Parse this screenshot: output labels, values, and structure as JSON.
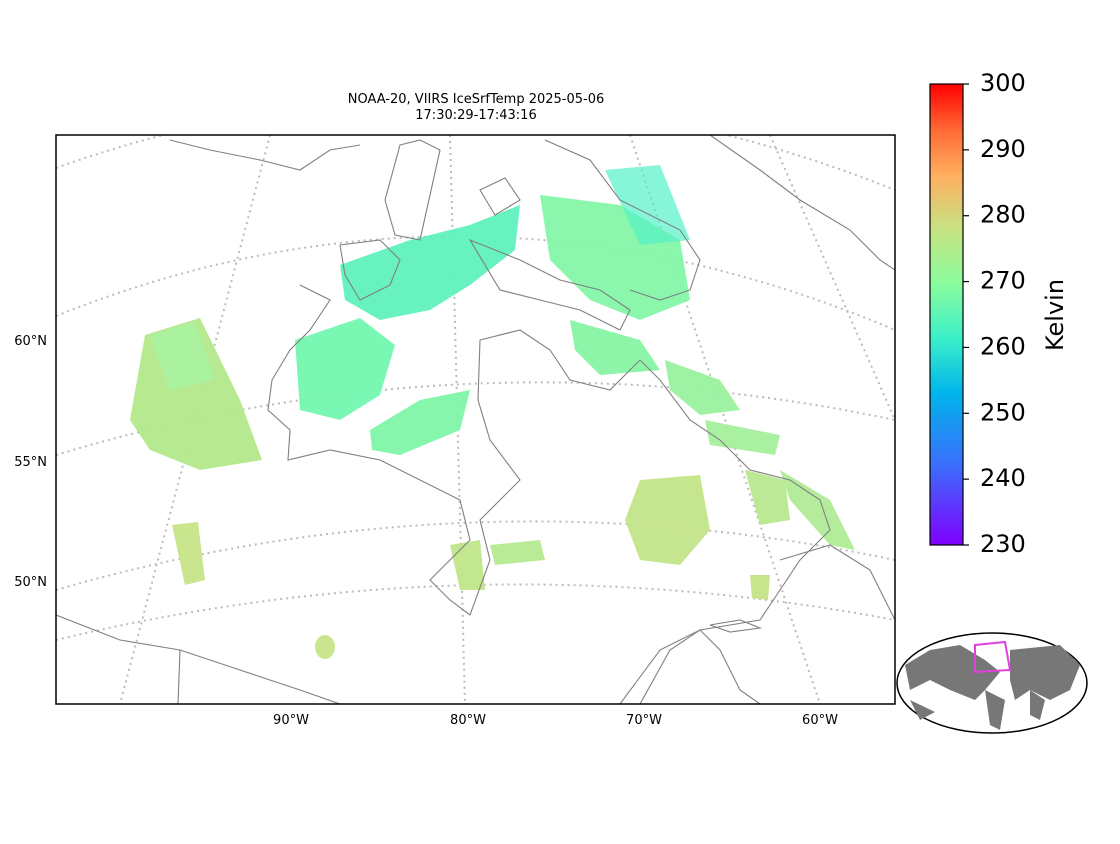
{
  "title": [
    "NOAA-20, VIIRS IceSrfTemp 2025-05-06",
    "17:30:29-17:43:16"
  ],
  "lat_labels": [
    "60°N",
    "55°N",
    "50°N"
  ],
  "lon_labels": [
    "90°W",
    "80°W",
    "70°W",
    "60°W"
  ],
  "colorbar": {
    "label": "Kelvin",
    "lim": [
      230,
      300
    ],
    "ticks": [
      230,
      240,
      250,
      260,
      270,
      280,
      290,
      300
    ]
  }
}
